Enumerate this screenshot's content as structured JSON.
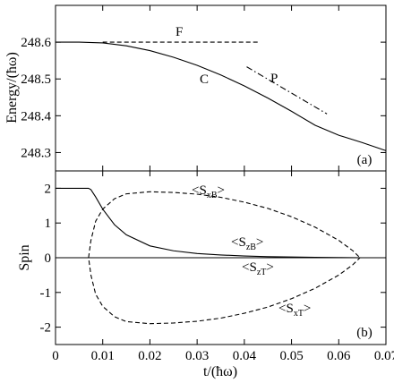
{
  "chart_data": [
    {
      "type": "line",
      "panel_label": "(a)",
      "ylabel": "Energy/(ħω)",
      "xlim": [
        0,
        0.07
      ],
      "ylim": [
        248.25,
        248.7
      ],
      "yticks": [
        248.3,
        248.4,
        248.5,
        248.6
      ],
      "ytick_labels": [
        "248.3",
        "248.4",
        "248.5",
        "248.6"
      ],
      "series": [
        {
          "name": "C",
          "style": "solid",
          "x": [
            0.0,
            0.005,
            0.01,
            0.015,
            0.02,
            0.025,
            0.03,
            0.035,
            0.04,
            0.045,
            0.05,
            0.055,
            0.06,
            0.065,
            0.07
          ],
          "y": [
            248.6,
            248.6,
            248.598,
            248.59,
            248.577,
            248.559,
            248.537,
            248.511,
            248.481,
            248.448,
            248.412,
            248.374,
            248.347,
            248.327,
            248.305
          ]
        },
        {
          "name": "F",
          "style": "dashed",
          "x": [
            0.01,
            0.043
          ],
          "y": [
            248.6,
            248.6
          ]
        },
        {
          "name": "P",
          "style": "dashdot",
          "x": [
            0.0405,
            0.0575
          ],
          "y": [
            248.533,
            248.405
          ]
        }
      ]
    },
    {
      "type": "line",
      "panel_label": "(b)",
      "ylabel": "Spin",
      "xlabel": "t/(ħω)",
      "xlim": [
        0,
        0.07
      ],
      "ylim": [
        -2.5,
        2.5
      ],
      "xticks": [
        0,
        0.01,
        0.02,
        0.03,
        0.04,
        0.05,
        0.06,
        0.07
      ],
      "xtick_labels": [
        "0",
        "0.01",
        "0.02",
        "0.03",
        "0.04",
        "0.05",
        "0.06",
        "0.07"
      ],
      "yticks": [
        -2,
        -1,
        0,
        1,
        2
      ],
      "ytick_labels": [
        "-2",
        "-1",
        "0",
        "1",
        "2"
      ],
      "series": [
        {
          "label_main": "<S",
          "label_sub": "zB",
          "label_close": ">",
          "style": "solid",
          "x": [
            0.0,
            0.007,
            0.0075,
            0.0085,
            0.01,
            0.0125,
            0.015,
            0.02,
            0.025,
            0.03,
            0.035,
            0.04,
            0.045,
            0.05,
            0.055,
            0.06,
            0.065,
            0.07
          ],
          "y": [
            2.0,
            2.0,
            1.96,
            1.75,
            1.4,
            0.95,
            0.66,
            0.34,
            0.2,
            0.12,
            0.08,
            0.05,
            0.03,
            0.02,
            0.01,
            0.005,
            0.0,
            0.0
          ]
        },
        {
          "label_main": "<S",
          "label_sub": "zT",
          "label_close": ">",
          "style": "solid",
          "x": [
            0.0,
            0.07
          ],
          "y": [
            0.0,
            0.0
          ]
        },
        {
          "label_main": "<S",
          "label_sub": "xB",
          "label_close": ">",
          "style": "dashed",
          "x": [
            0.007,
            0.0075,
            0.0085,
            0.01,
            0.0125,
            0.015,
            0.02,
            0.025,
            0.03,
            0.035,
            0.04,
            0.045,
            0.05,
            0.055,
            0.06,
            0.063,
            0.0645
          ],
          "y": [
            0.0,
            0.5,
            1.05,
            1.4,
            1.7,
            1.84,
            1.9,
            1.88,
            1.83,
            1.74,
            1.6,
            1.42,
            1.18,
            0.88,
            0.5,
            0.2,
            0.0
          ]
        },
        {
          "label_main": "<S",
          "label_sub": "xT",
          "label_close": ">",
          "style": "dashed",
          "x": [
            0.0,
            0.007,
            0.0075,
            0.0085,
            0.01,
            0.0125,
            0.015,
            0.02,
            0.025,
            0.03,
            0.035,
            0.04,
            0.045,
            0.05,
            0.055,
            0.06,
            0.063,
            0.0645
          ],
          "y": [
            0.0,
            0.0,
            -0.5,
            -1.05,
            -1.4,
            -1.7,
            -1.84,
            -1.9,
            -1.88,
            -1.83,
            -1.74,
            -1.6,
            -1.42,
            -1.18,
            -0.88,
            -0.5,
            -0.2,
            0.0
          ]
        }
      ]
    }
  ]
}
